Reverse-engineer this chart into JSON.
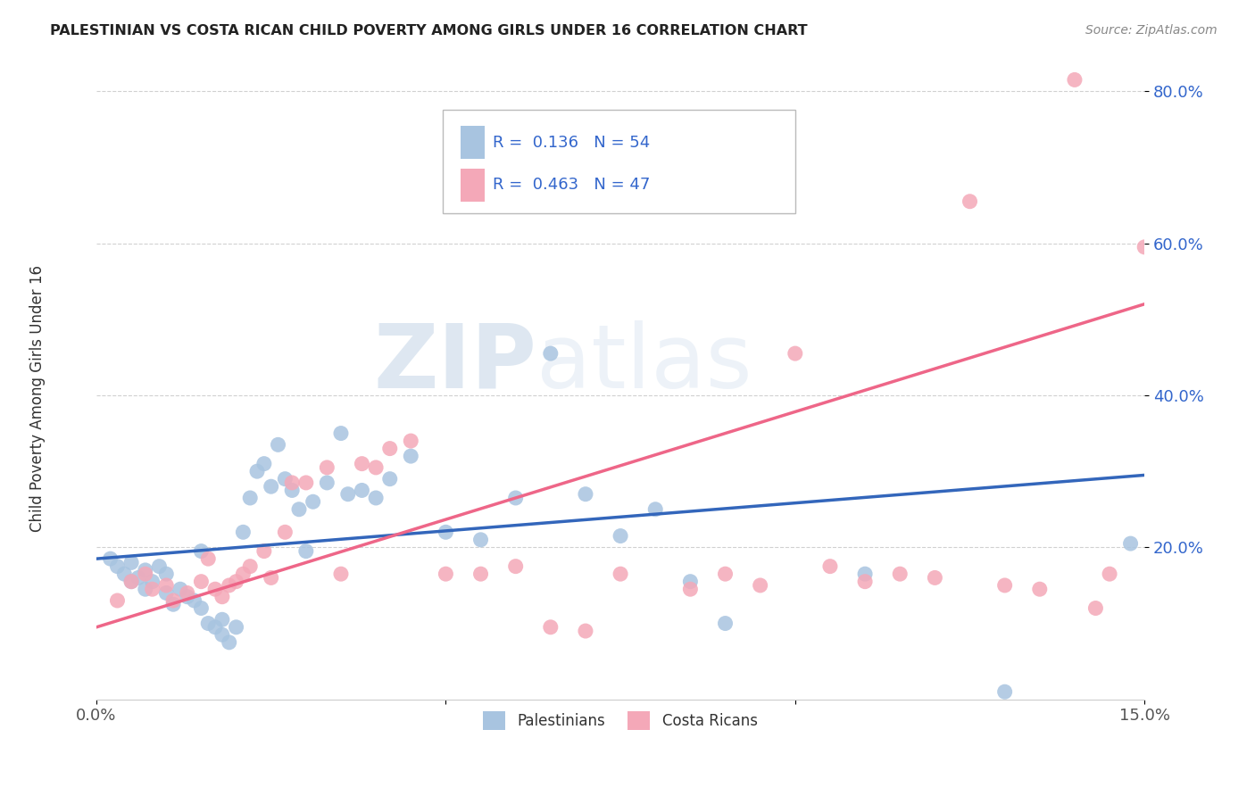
{
  "title": "PALESTINIAN VS COSTA RICAN CHILD POVERTY AMONG GIRLS UNDER 16 CORRELATION CHART",
  "source": "Source: ZipAtlas.com",
  "ylabel": "Child Poverty Among Girls Under 16",
  "xlim": [
    0.0,
    0.15
  ],
  "ylim": [
    0.0,
    0.85
  ],
  "xticks": [
    0.0,
    0.05,
    0.1,
    0.15
  ],
  "xticklabels": [
    "0.0%",
    "",
    "",
    "15.0%"
  ],
  "yticks": [
    0.2,
    0.4,
    0.6,
    0.8
  ],
  "yticklabels": [
    "20.0%",
    "40.0%",
    "60.0%",
    "80.0%"
  ],
  "background_color": "#ffffff",
  "watermark_zip": "ZIP",
  "watermark_atlas": "atlas",
  "legend_R_blue": "0.136",
  "legend_N_blue": "54",
  "legend_R_pink": "0.463",
  "legend_N_pink": "47",
  "blue_color": "#A8C4E0",
  "pink_color": "#F4A8B8",
  "blue_line_color": "#3366BB",
  "pink_line_color": "#EE6688",
  "label_color": "#3366CC",
  "palestinians_label": "Palestinians",
  "costa_ricans_label": "Costa Ricans",
  "blue_scatter_x": [
    0.002,
    0.003,
    0.004,
    0.005,
    0.005,
    0.006,
    0.007,
    0.007,
    0.008,
    0.009,
    0.01,
    0.01,
    0.011,
    0.012,
    0.013,
    0.014,
    0.015,
    0.015,
    0.016,
    0.017,
    0.018,
    0.018,
    0.019,
    0.02,
    0.021,
    0.022,
    0.023,
    0.024,
    0.025,
    0.026,
    0.027,
    0.028,
    0.029,
    0.03,
    0.031,
    0.033,
    0.035,
    0.036,
    0.038,
    0.04,
    0.042,
    0.045,
    0.05,
    0.055,
    0.06,
    0.065,
    0.07,
    0.075,
    0.08,
    0.085,
    0.09,
    0.11,
    0.13,
    0.148
  ],
  "blue_scatter_y": [
    0.185,
    0.175,
    0.165,
    0.155,
    0.18,
    0.16,
    0.145,
    0.17,
    0.155,
    0.175,
    0.14,
    0.165,
    0.125,
    0.145,
    0.135,
    0.13,
    0.12,
    0.195,
    0.1,
    0.095,
    0.085,
    0.105,
    0.075,
    0.095,
    0.22,
    0.265,
    0.3,
    0.31,
    0.28,
    0.335,
    0.29,
    0.275,
    0.25,
    0.195,
    0.26,
    0.285,
    0.35,
    0.27,
    0.275,
    0.265,
    0.29,
    0.32,
    0.22,
    0.21,
    0.265,
    0.455,
    0.27,
    0.215,
    0.25,
    0.155,
    0.1,
    0.165,
    0.01,
    0.205
  ],
  "pink_scatter_x": [
    0.003,
    0.005,
    0.007,
    0.008,
    0.01,
    0.011,
    0.013,
    0.015,
    0.016,
    0.017,
    0.018,
    0.019,
    0.02,
    0.021,
    0.022,
    0.024,
    0.025,
    0.027,
    0.028,
    0.03,
    0.033,
    0.035,
    0.038,
    0.04,
    0.042,
    0.045,
    0.05,
    0.055,
    0.06,
    0.065,
    0.07,
    0.075,
    0.085,
    0.09,
    0.095,
    0.1,
    0.105,
    0.11,
    0.115,
    0.12,
    0.125,
    0.13,
    0.135,
    0.14,
    0.143,
    0.145,
    0.15
  ],
  "pink_scatter_y": [
    0.13,
    0.155,
    0.165,
    0.145,
    0.15,
    0.13,
    0.14,
    0.155,
    0.185,
    0.145,
    0.135,
    0.15,
    0.155,
    0.165,
    0.175,
    0.195,
    0.16,
    0.22,
    0.285,
    0.285,
    0.305,
    0.165,
    0.31,
    0.305,
    0.33,
    0.34,
    0.165,
    0.165,
    0.175,
    0.095,
    0.09,
    0.165,
    0.145,
    0.165,
    0.15,
    0.455,
    0.175,
    0.155,
    0.165,
    0.16,
    0.655,
    0.15,
    0.145,
    0.815,
    0.12,
    0.165,
    0.595
  ],
  "blue_line_x": [
    0.0,
    0.15
  ],
  "blue_line_y": [
    0.185,
    0.295
  ],
  "pink_line_x": [
    0.0,
    0.15
  ],
  "pink_line_y": [
    0.095,
    0.52
  ]
}
